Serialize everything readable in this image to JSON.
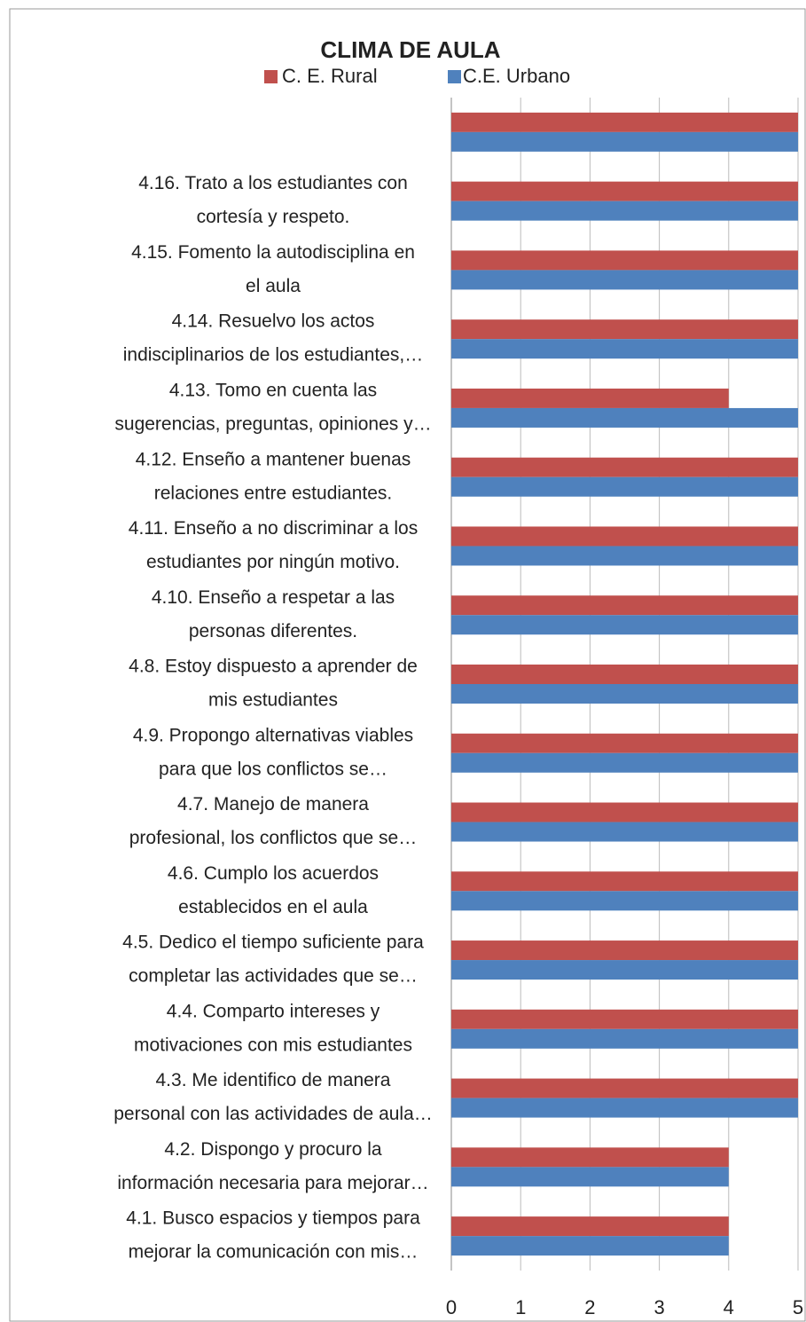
{
  "chart_data": {
    "type": "barh",
    "title": "CLIMA DE AULA",
    "categories": [
      [
        "4.1.  Busco espacios y tiempos para",
        "mejorar la comunicación con mis…"
      ],
      [
        "4.2.    Dispongo y procuro la",
        "información necesaria para mejorar…"
      ],
      [
        "4.3.  Me identifico de manera",
        "personal con las actividades de aula…"
      ],
      [
        "4.4.  Comparto intereses y",
        "motivaciones con mis estudiantes"
      ],
      [
        "4.5.  Dedico el tiempo suficiente para",
        "completar las actividades que se…"
      ],
      [
        "4.6.  Cumplo los acuerdos",
        "establecidos en el aula"
      ],
      [
        "4.7.     Manejo de manera",
        "profesional, los conflictos que se…"
      ],
      [
        "4.9.     Propongo alternativas viables",
        "para que los conflictos se…"
      ],
      [
        "4.8.  Estoy dispuesto a aprender de",
        "mis estudiantes"
      ],
      [
        "4.10.   Enseño a respetar a las",
        "personas diferentes."
      ],
      [
        "4.11.   Enseño a no discriminar a los",
        "estudiantes por ningún motivo."
      ],
      [
        "4.12.   Enseño a mantener buenas",
        "relaciones entre estudiantes."
      ],
      [
        "4.13.   Tomo en cuenta las",
        "sugerencias, preguntas, opiniones y…"
      ],
      [
        "4.14.   Resuelvo los actos",
        "indisciplinarios de los estudiantes,…"
      ],
      [
        "4.15.   Fomento la autodisciplina en",
        "el aula"
      ],
      [
        "4.16.   Trato a los estudiantes con",
        "cortesía y respeto."
      ],
      null
    ],
    "series": [
      {
        "name": "C. E. Rural",
        "color": "#c0504d",
        "values": [
          4,
          4,
          5,
          5,
          5,
          5,
          5,
          5,
          5,
          5,
          5,
          5,
          4,
          5,
          5,
          5,
          5
        ]
      },
      {
        "name": "C.E. Urbano",
        "color": "#4f81bd",
        "values": [
          4,
          4,
          5,
          5,
          5,
          5,
          5,
          5,
          5,
          5,
          5,
          5,
          5,
          5,
          5,
          5,
          5
        ]
      }
    ],
    "xlim": [
      0,
      5
    ],
    "xticks": [
      0,
      1,
      2,
      3,
      4,
      5
    ],
    "grid": true
  }
}
